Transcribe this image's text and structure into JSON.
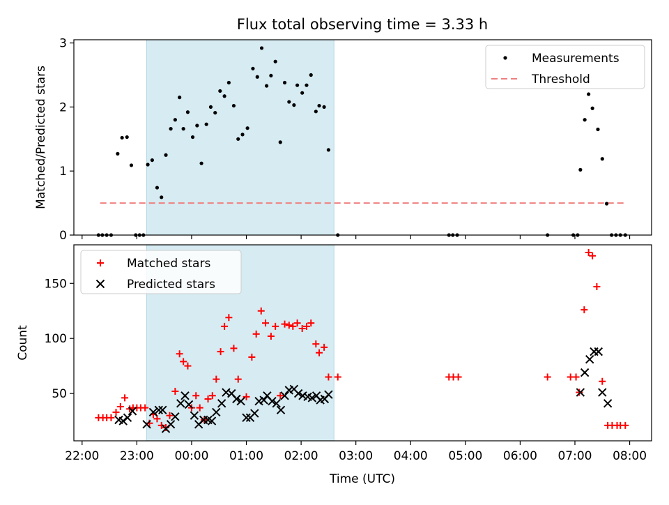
{
  "figure_title": "Flux total observing time = 3.33 h",
  "shared_x": {
    "label": "Time (UTC)",
    "ticks": [
      "22:00",
      "23:00",
      "00:00",
      "01:00",
      "02:00",
      "03:00",
      "04:00",
      "05:00",
      "06:00",
      "07:00",
      "08:00"
    ],
    "tick_hours": [
      22,
      23,
      24,
      25,
      26,
      27,
      28,
      29,
      30,
      31,
      32
    ],
    "range_hours": [
      21.85,
      32.4
    ]
  },
  "chart_data": [
    {
      "type": "scatter",
      "ylabel": "Matched/Predicted stars",
      "ylim": [
        0,
        3.05
      ],
      "yticks": [
        0,
        1,
        2,
        3
      ],
      "highlight_span_hours": [
        23.18,
        26.6
      ],
      "legend": {
        "placement": "top-right",
        "entries": [
          "Measurements",
          "Threshold"
        ]
      },
      "threshold": {
        "name": "Threshold",
        "value": 0.5,
        "x_range_hours": [
          22.33,
          31.92
        ],
        "color": "#f08080"
      },
      "series": [
        {
          "name": "Measurements",
          "marker": "dot",
          "color": "#000000",
          "points": [
            [
              22.3,
              0
            ],
            [
              22.37,
              0
            ],
            [
              22.45,
              0
            ],
            [
              22.53,
              0
            ],
            [
              22.65,
              1.27
            ],
            [
              22.73,
              1.52
            ],
            [
              22.82,
              1.53
            ],
            [
              22.9,
              1.09
            ],
            [
              22.98,
              0
            ],
            [
              23.05,
              0
            ],
            [
              23.12,
              0
            ],
            [
              23.2,
              1.1
            ],
            [
              23.28,
              1.17
            ],
            [
              23.37,
              0.74
            ],
            [
              23.45,
              0.59
            ],
            [
              23.53,
              1.25
            ],
            [
              23.62,
              1.66
            ],
            [
              23.7,
              1.8
            ],
            [
              23.78,
              2.15
            ],
            [
              23.85,
              1.66
            ],
            [
              23.93,
              1.92
            ],
            [
              24.02,
              1.53
            ],
            [
              24.1,
              1.71
            ],
            [
              24.18,
              1.12
            ],
            [
              24.27,
              1.73
            ],
            [
              24.35,
              2.0
            ],
            [
              24.43,
              1.91
            ],
            [
              24.52,
              2.25
            ],
            [
              24.6,
              2.17
            ],
            [
              24.68,
              2.38
            ],
            [
              24.77,
              2.02
            ],
            [
              24.85,
              1.5
            ],
            [
              24.93,
              1.57
            ],
            [
              25.02,
              1.67
            ],
            [
              25.12,
              2.6
            ],
            [
              25.2,
              2.47
            ],
            [
              25.28,
              2.92
            ],
            [
              25.37,
              2.33
            ],
            [
              25.45,
              2.49
            ],
            [
              25.53,
              2.71
            ],
            [
              25.62,
              1.45
            ],
            [
              25.7,
              2.38
            ],
            [
              25.78,
              2.08
            ],
            [
              25.87,
              2.03
            ],
            [
              25.93,
              2.34
            ],
            [
              26.02,
              2.22
            ],
            [
              26.1,
              2.34
            ],
            [
              26.18,
              2.5
            ],
            [
              26.27,
              1.93
            ],
            [
              26.33,
              2.02
            ],
            [
              26.42,
              2.0
            ],
            [
              26.5,
              1.33
            ],
            [
              26.67,
              0
            ],
            [
              28.7,
              0
            ],
            [
              28.77,
              0
            ],
            [
              28.85,
              0
            ],
            [
              30.5,
              0
            ],
            [
              30.97,
              0
            ],
            [
              31.05,
              0
            ],
            [
              31.1,
              1.02
            ],
            [
              31.18,
              1.8
            ],
            [
              31.25,
              2.2
            ],
            [
              31.32,
              1.98
            ],
            [
              31.42,
              1.65
            ],
            [
              31.5,
              1.19
            ],
            [
              31.58,
              0.49
            ],
            [
              31.67,
              0
            ],
            [
              31.75,
              0
            ],
            [
              31.83,
              0
            ],
            [
              31.92,
              0
            ]
          ]
        }
      ]
    },
    {
      "type": "scatter",
      "ylabel": "Count",
      "ylim": [
        7,
        185
      ],
      "yticks": [
        50,
        100,
        150
      ],
      "highlight_span_hours": [
        23.18,
        26.6
      ],
      "legend": {
        "placement": "top-left",
        "entries": [
          "Matched stars",
          "Predicted stars"
        ]
      },
      "series": [
        {
          "name": "Matched stars",
          "marker": "plus",
          "color": "#ff0000",
          "points": [
            [
              22.3,
              28
            ],
            [
              22.38,
              28
            ],
            [
              22.45,
              28
            ],
            [
              22.53,
              28
            ],
            [
              22.62,
              33
            ],
            [
              22.7,
              38
            ],
            [
              22.78,
              46
            ],
            [
              22.87,
              36
            ],
            [
              22.93,
              37
            ],
            [
              23.0,
              37
            ],
            [
              23.07,
              37
            ],
            [
              23.15,
              37
            ],
            [
              23.23,
              23
            ],
            [
              23.3,
              31
            ],
            [
              23.37,
              27
            ],
            [
              23.45,
              21
            ],
            [
              23.53,
              19
            ],
            [
              23.6,
              30
            ],
            [
              23.7,
              52
            ],
            [
              23.78,
              86
            ],
            [
              23.85,
              79
            ],
            [
              23.93,
              75
            ],
            [
              24.0,
              37
            ],
            [
              24.08,
              48
            ],
            [
              24.15,
              37
            ],
            [
              24.23,
              26
            ],
            [
              24.3,
              45
            ],
            [
              24.38,
              48
            ],
            [
              24.45,
              63
            ],
            [
              24.53,
              88
            ],
            [
              24.6,
              111
            ],
            [
              24.68,
              119
            ],
            [
              24.77,
              91
            ],
            [
              24.85,
              63
            ],
            [
              25.0,
              47
            ],
            [
              25.1,
              83
            ],
            [
              25.18,
              104
            ],
            [
              25.27,
              125
            ],
            [
              25.35,
              114
            ],
            [
              25.45,
              102
            ],
            [
              25.53,
              111
            ],
            [
              25.62,
              48
            ],
            [
              25.7,
              113
            ],
            [
              25.78,
              112
            ],
            [
              25.85,
              111
            ],
            [
              25.93,
              114
            ],
            [
              26.02,
              109
            ],
            [
              26.1,
              111
            ],
            [
              26.18,
              114
            ],
            [
              26.27,
              95
            ],
            [
              26.33,
              87
            ],
            [
              26.42,
              92
            ],
            [
              26.5,
              65
            ],
            [
              26.67,
              65
            ],
            [
              28.7,
              65
            ],
            [
              28.78,
              65
            ],
            [
              28.87,
              65
            ],
            [
              30.5,
              65
            ],
            [
              30.92,
              65
            ],
            [
              31.02,
              65
            ],
            [
              31.08,
              51
            ],
            [
              31.17,
              126
            ],
            [
              31.25,
              178
            ],
            [
              31.32,
              175
            ],
            [
              31.4,
              147
            ],
            [
              31.5,
              61
            ],
            [
              31.6,
              21
            ],
            [
              31.68,
              21
            ],
            [
              31.77,
              21
            ],
            [
              31.83,
              21
            ],
            [
              31.92,
              21
            ]
          ]
        },
        {
          "name": "Predicted stars",
          "marker": "x",
          "color": "#000000",
          "points": [
            [
              22.67,
              26
            ],
            [
              22.75,
              25
            ],
            [
              22.83,
              28
            ],
            [
              22.92,
              34
            ],
            [
              23.18,
              22
            ],
            [
              23.3,
              33
            ],
            [
              23.4,
              35
            ],
            [
              23.47,
              35
            ],
            [
              23.53,
              18
            ],
            [
              23.62,
              22
            ],
            [
              23.7,
              29
            ],
            [
              23.8,
              41
            ],
            [
              23.88,
              48
            ],
            [
              23.95,
              40
            ],
            [
              24.05,
              30
            ],
            [
              24.13,
              22
            ],
            [
              24.22,
              26
            ],
            [
              24.3,
              26
            ],
            [
              24.37,
              25
            ],
            [
              24.45,
              33
            ],
            [
              24.55,
              41
            ],
            [
              24.63,
              51
            ],
            [
              24.73,
              50
            ],
            [
              24.82,
              45
            ],
            [
              24.9,
              43
            ],
            [
              25.0,
              28
            ],
            [
              25.07,
              28
            ],
            [
              25.15,
              32
            ],
            [
              25.23,
              43
            ],
            [
              25.32,
              44
            ],
            [
              25.38,
              48
            ],
            [
              25.47,
              43
            ],
            [
              25.55,
              41
            ],
            [
              25.63,
              35
            ],
            [
              25.7,
              48
            ],
            [
              25.78,
              53
            ],
            [
              25.87,
              54
            ],
            [
              25.95,
              50
            ],
            [
              26.03,
              48
            ],
            [
              26.12,
              47
            ],
            [
              26.2,
              46
            ],
            [
              26.28,
              48
            ],
            [
              26.35,
              44
            ],
            [
              26.43,
              45
            ],
            [
              26.5,
              49
            ],
            [
              31.1,
              51
            ],
            [
              31.18,
              69
            ],
            [
              31.27,
              81
            ],
            [
              31.35,
              88
            ],
            [
              31.43,
              88
            ],
            [
              31.5,
              51
            ],
            [
              31.6,
              41
            ]
          ]
        }
      ]
    }
  ]
}
